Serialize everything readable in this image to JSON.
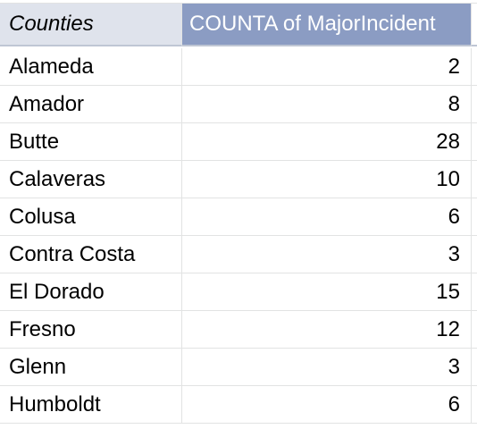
{
  "table": {
    "header": {
      "column_label": "Counties",
      "value_label": "COUNTA of MajorIncident"
    },
    "rows": [
      {
        "county": "Alameda",
        "count": "2"
      },
      {
        "county": "Amador",
        "count": "8"
      },
      {
        "county": "Butte",
        "count": "28"
      },
      {
        "county": "Calaveras",
        "count": "10"
      },
      {
        "county": "Colusa",
        "count": "6"
      },
      {
        "county": "Contra Costa",
        "count": "3"
      },
      {
        "county": "El Dorado",
        "count": "15"
      },
      {
        "county": "Fresno",
        "count": "12"
      },
      {
        "county": "Glenn",
        "count": "3"
      },
      {
        "county": "Humboldt",
        "count": "6"
      }
    ]
  },
  "colors": {
    "header_left_bg": "#dfe3ec",
    "header_right_bg": "#8b9cc3",
    "grid_line": "#e2e3e3"
  }
}
